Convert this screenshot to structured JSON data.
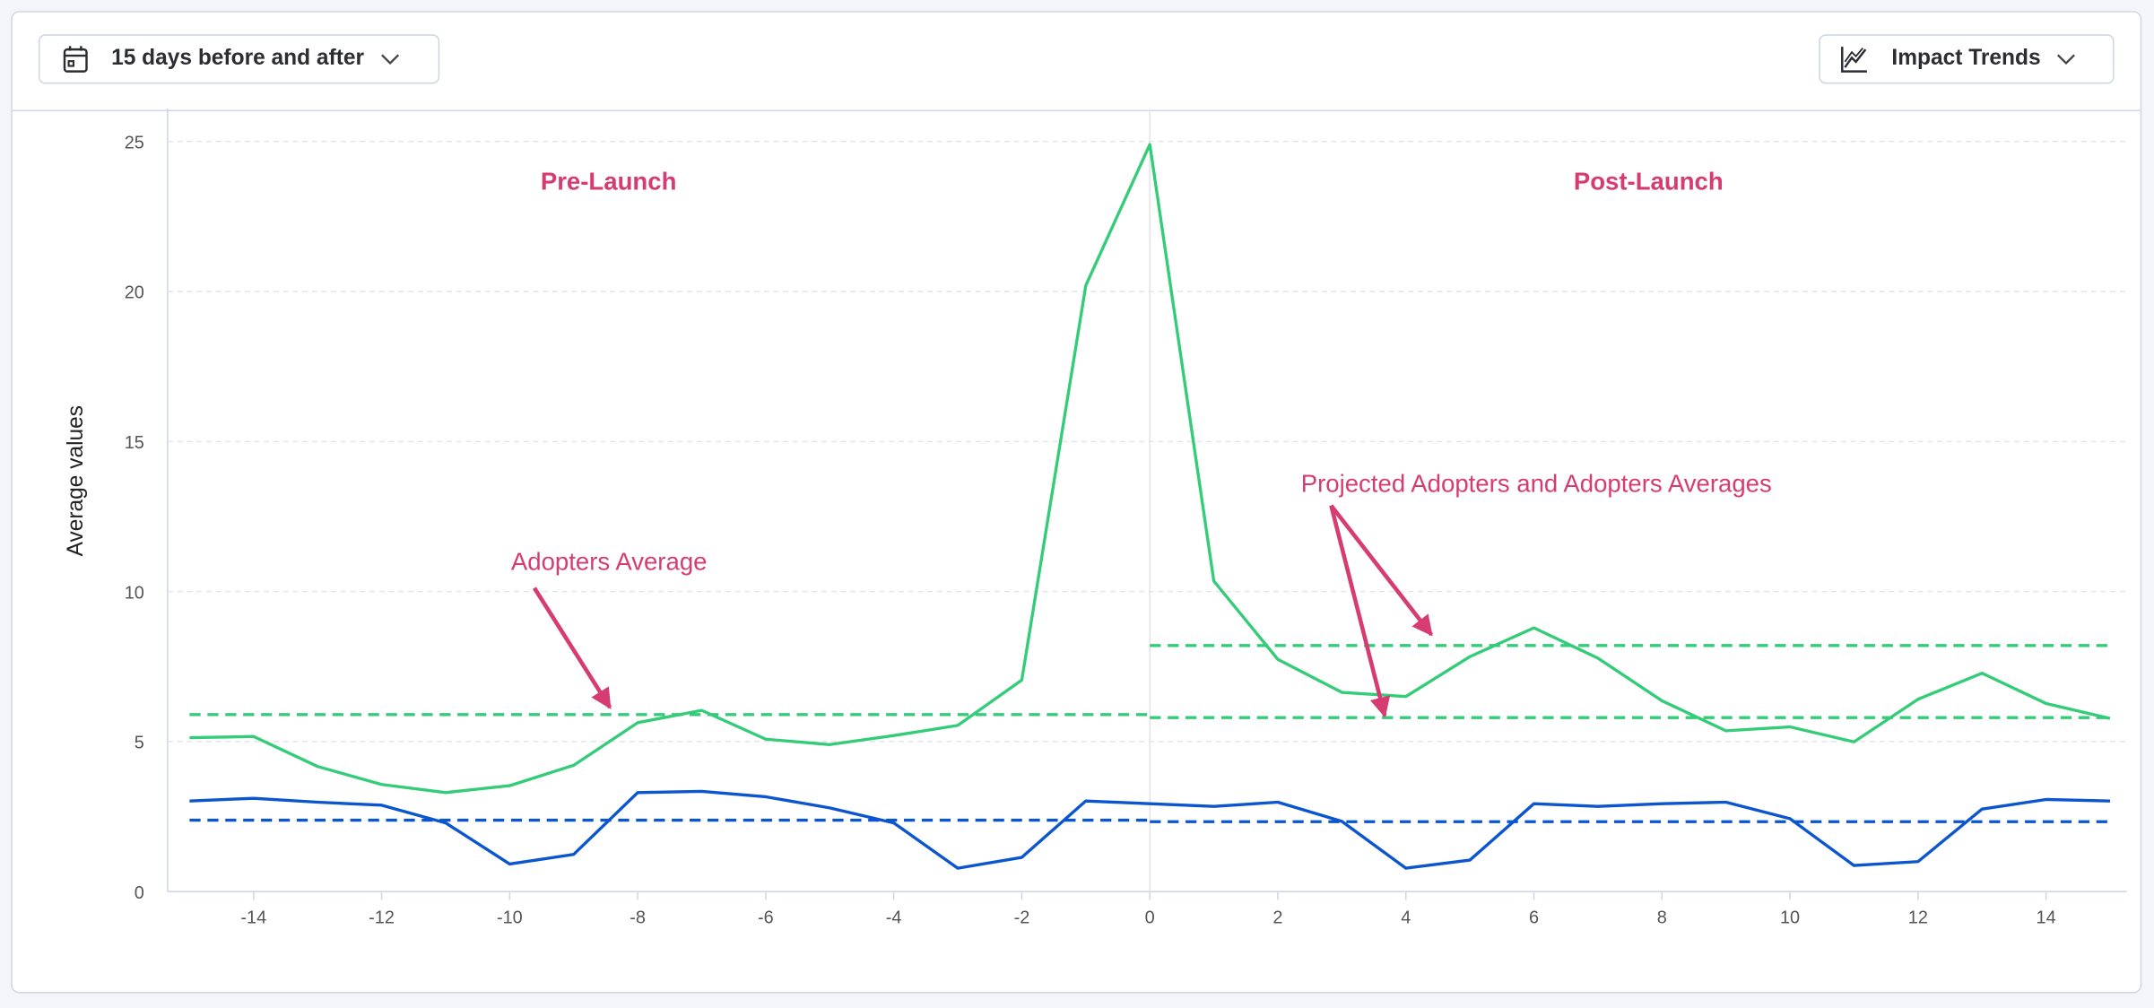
{
  "toolbar": {
    "range_label": "15 days before and after",
    "range_icon": "calendar-icon",
    "view_label": "Impact Trends",
    "view_icon": "line-chart-icon"
  },
  "colors": {
    "green": "#34cc78",
    "blue": "#0b55cf",
    "annotation": "#d63c72"
  },
  "chart_data": {
    "type": "line",
    "ylabel": "Average values",
    "xlabel": "",
    "xlim": [
      -15,
      15
    ],
    "ylim": [
      0,
      25
    ],
    "yticks": [
      0,
      5,
      10,
      15,
      20,
      25
    ],
    "xticks": [
      -14,
      -12,
      -10,
      -8,
      -6,
      -4,
      -2,
      0,
      2,
      4,
      6,
      8,
      10,
      12,
      14
    ],
    "grid": "horizontal dashed",
    "x": [
      -15,
      -14,
      -13,
      -12,
      -11,
      -10,
      -9,
      -8,
      -7,
      -6,
      -5,
      -4,
      -3,
      -2,
      -1,
      0,
      1,
      2,
      3,
      4,
      5,
      6,
      7,
      8,
      9,
      10,
      11,
      12,
      13,
      14,
      15
    ],
    "series": [
      {
        "color": "#34cc78",
        "values": [
          5.13,
          5.17,
          4.17,
          3.57,
          3.3,
          3.53,
          4.21,
          5.63,
          6.04,
          5.08,
          4.9,
          5.2,
          5.54,
          7.05,
          20.2,
          24.9,
          10.35,
          7.74,
          6.64,
          6.5,
          7.83,
          8.79,
          7.78,
          6.36,
          5.36,
          5.49,
          4.99,
          6.41,
          7.28,
          6.27,
          5.77
        ]
      },
      {
        "color": "#0b55cf",
        "values": [
          3.02,
          3.11,
          2.98,
          2.88,
          2.29,
          0.92,
          1.24,
          3.3,
          3.34,
          3.16,
          2.79,
          2.29,
          0.78,
          1.14,
          3.02,
          2.93,
          2.84,
          2.98,
          2.34,
          0.78,
          1.05,
          2.93,
          2.84,
          2.93,
          2.98,
          2.43,
          0.87,
          1.0,
          2.75,
          3.07,
          3.02
        ]
      }
    ],
    "reference_lines": [
      {
        "color": "#34cc78",
        "x_range": [
          -15,
          0
        ],
        "y": 5.9
      },
      {
        "color": "#0b55cf",
        "x_range": [
          -15,
          0
        ],
        "y": 2.38
      },
      {
        "color": "#34cc78",
        "x_range": [
          0,
          15
        ],
        "y": 8.2
      },
      {
        "color": "#34cc78",
        "x_range": [
          0,
          15
        ],
        "y": 5.8
      },
      {
        "color": "#0b55cf",
        "x_range": [
          0,
          15
        ],
        "y": 2.33
      }
    ],
    "vertical_marker_x": 0,
    "annotations": {
      "pre_launch": "Pre-Launch",
      "post_launch": "Post-Launch",
      "adopters_average": "Adopters Average",
      "projected_averages": "Projected Adopters and Adopters Averages"
    }
  }
}
